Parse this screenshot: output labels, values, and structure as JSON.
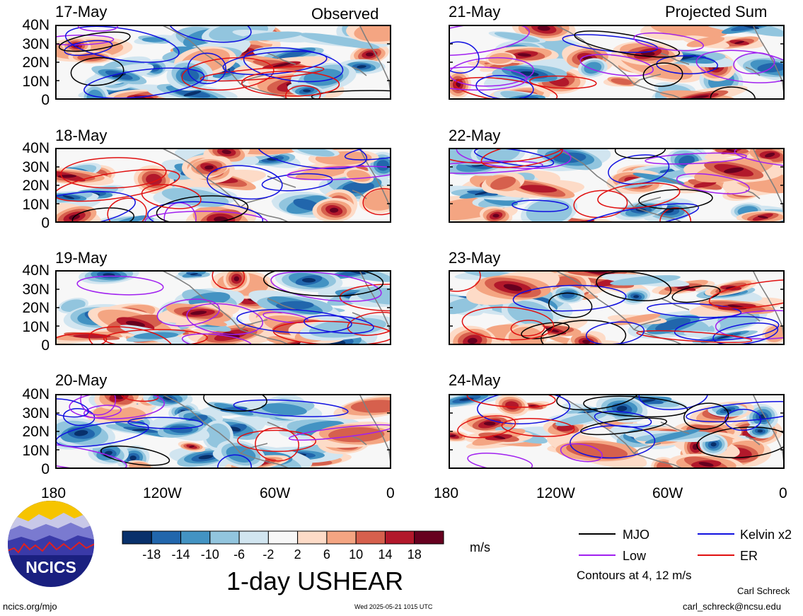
{
  "header": {
    "observed_label": "Observed",
    "projected_label": "Projected Sum"
  },
  "panels": {
    "left": [
      {
        "date": "17-May"
      },
      {
        "date": "18-May"
      },
      {
        "date": "19-May"
      },
      {
        "date": "20-May"
      }
    ],
    "right": [
      {
        "date": "21-May"
      },
      {
        "date": "22-May"
      },
      {
        "date": "23-May"
      },
      {
        "date": "24-May"
      }
    ]
  },
  "axes": {
    "y_ticks": [
      "40N",
      "30N",
      "20N",
      "10N",
      "0"
    ],
    "x_ticks": [
      "180",
      "120W",
      "60W",
      "0"
    ]
  },
  "legend": {
    "items": [
      {
        "label": "MJO",
        "color": "#000000"
      },
      {
        "label": "Kelvin x2",
        "color": "#1010e0"
      },
      {
        "label": "Low",
        "color": "#a020f0"
      },
      {
        "label": "ER",
        "color": "#e01010"
      }
    ],
    "contours_note": "Contours at 4, 12 m/s"
  },
  "colorbar": {
    "ticks": [
      "-18",
      "-14",
      "-10",
      "-6",
      "-2",
      "2",
      "6",
      "10",
      "14",
      "18"
    ],
    "colors": [
      "#08306b",
      "#2166ac",
      "#4393c3",
      "#92c5de",
      "#d1e5f0",
      "#f7f7f7",
      "#fddbc7",
      "#f4a582",
      "#d6604d",
      "#b2182b",
      "#67001f"
    ],
    "units": "m/s"
  },
  "title": "1-day USHEAR",
  "logo": {
    "text": "NCICS"
  },
  "footer": {
    "url": "ncics.org/mjo",
    "timestamp": "Wed 2025-05-21 1015 UTC",
    "author": "Carl Schreck",
    "email": "carl_schreck@ncsu.edu"
  }
}
